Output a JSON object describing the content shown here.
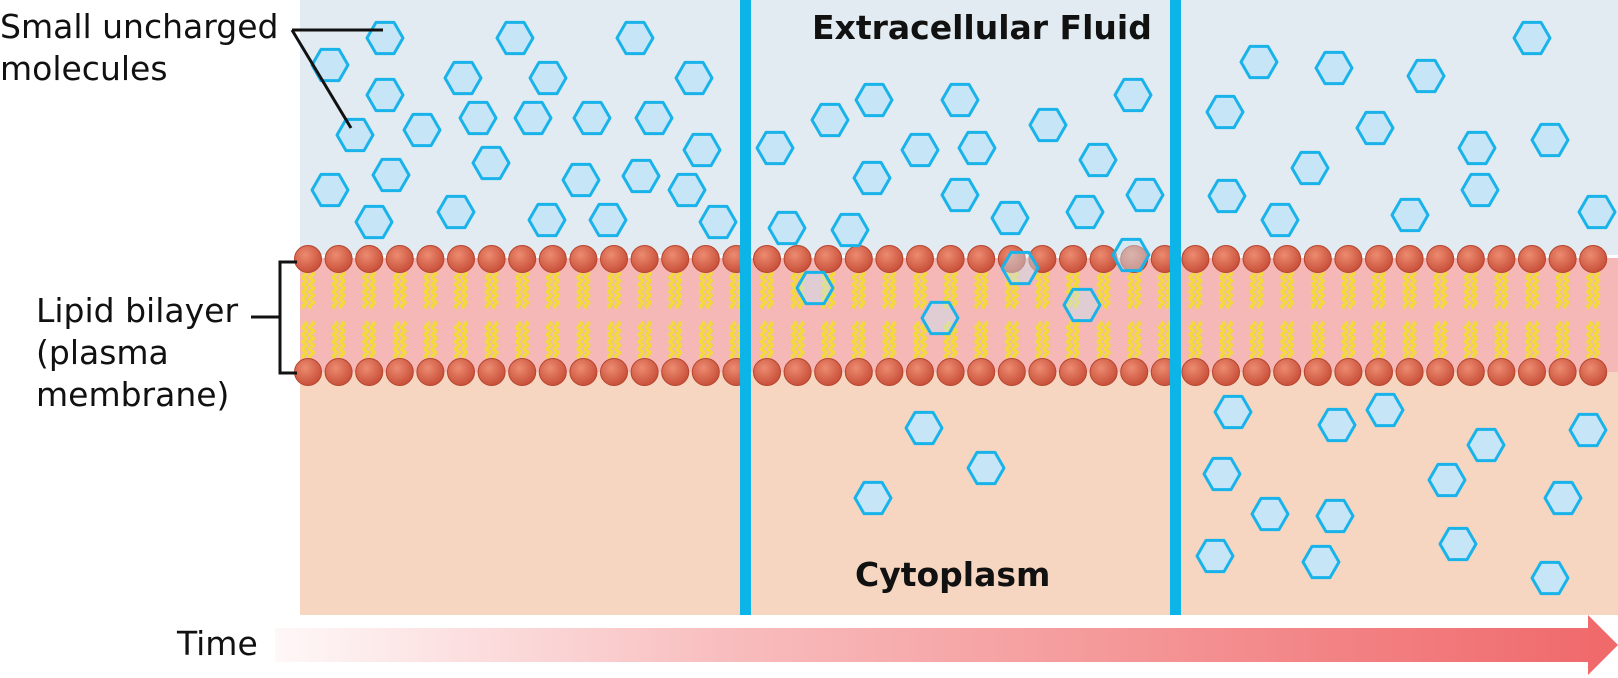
{
  "labels": {
    "small_molecules": [
      "Small uncharged",
      "molecules"
    ],
    "bilayer": [
      "Lipid bilayer",
      "(plasma",
      "membrane)"
    ],
    "extracellular": "Extracellular Fluid",
    "cytoplasm": "Cytoplasm",
    "time": "Time"
  },
  "colors": {
    "extracellular_bg": "#e2ebf1",
    "cytoplasm_bg": "#f6d6c1",
    "membrane_core": "#f5b8b6",
    "lipid_head": "#d9644a",
    "lipid_tail": "#f1da3a",
    "molecule_fill": "#c6e6f7",
    "molecule_stroke": "#19b3ea",
    "divider": "#0db4e8",
    "arrow": "#f06a6c"
  },
  "panels": [
    {
      "stage": "start",
      "extracellular_molecules": 31,
      "membrane_molecules": 0,
      "cytoplasm_molecules": 0
    },
    {
      "stage": "diffusing",
      "extracellular_molecules": 24,
      "membrane_molecules": 5,
      "cytoplasm_molecules": 3
    },
    {
      "stage": "equilibrium",
      "extracellular_molecules": 17,
      "membrane_molecules": 0,
      "cytoplasm_molecules": 17
    }
  ]
}
